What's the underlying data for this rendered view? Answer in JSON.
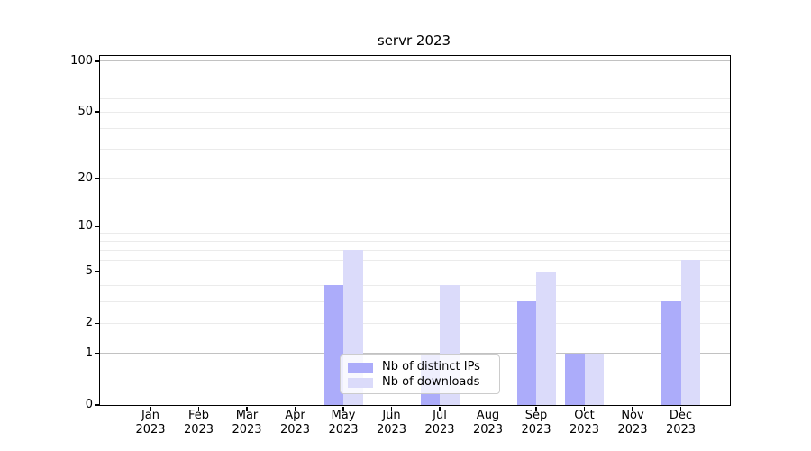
{
  "title": "servr 2023",
  "chart_data": {
    "type": "bar",
    "title": "servr 2023",
    "categories": [
      "Jan 2023",
      "Feb 2023",
      "Mar 2023",
      "Apr 2023",
      "May 2023",
      "Jun 2023",
      "Jul 2023",
      "Aug 2023",
      "Sep 2023",
      "Oct 2023",
      "Nov 2023",
      "Dec 2023"
    ],
    "series": [
      {
        "name": "Nb of distinct IPs",
        "color": "#acacfa",
        "values": [
          0,
          0,
          0,
          0,
          4,
          0,
          1,
          0,
          3,
          1,
          0,
          3
        ]
      },
      {
        "name": "Nb of downloads",
        "color": "#dbdbfa",
        "values": [
          0,
          0,
          0,
          0,
          7,
          0,
          4,
          0,
          5,
          1,
          0,
          6
        ]
      }
    ],
    "xlabel": "",
    "ylabel": "",
    "yscale": "log1p",
    "ylim": [
      0,
      107.3
    ],
    "yticks": [
      0,
      1,
      2,
      5,
      10,
      20,
      50,
      100
    ],
    "major_gridlines": [
      1,
      10,
      100
    ],
    "minor_gridlines": [
      2,
      3,
      4,
      5,
      6,
      7,
      8,
      9,
      20,
      30,
      40,
      50,
      60,
      70,
      80,
      90
    ],
    "grid": true,
    "legend_position": "inside-lower-center"
  },
  "colors": {
    "bar_distinct_ips": "#acacfa",
    "bar_downloads": "#dbdbfa",
    "axis": "#000000",
    "major_grid": "#c2c2c2",
    "minor_grid": "#ebebeb",
    "background": "#ffffff",
    "legend_border": "#cccccc"
  }
}
